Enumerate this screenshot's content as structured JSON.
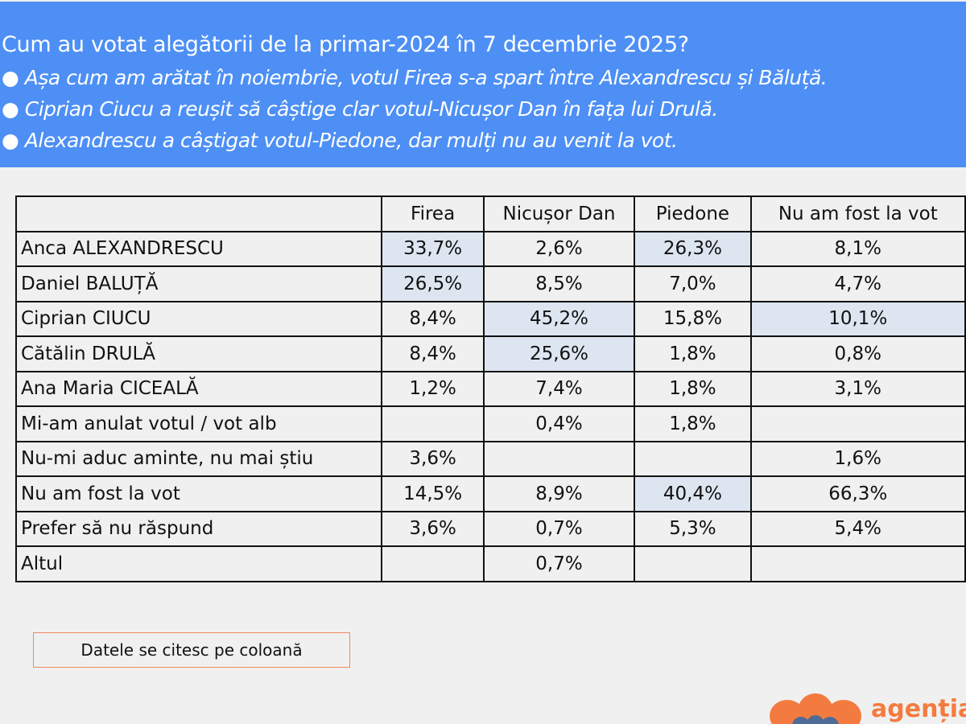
{
  "header": {
    "title": "Cum au votat alegătorii de la primar-2024 în 7 decembrie 2025?",
    "bullets": [
      "● Așa cum am arătat în noiembrie, votul Firea s-a spart între Alexandrescu și Băluță.",
      "● Ciprian Ciucu a reușit să câștige clar votul-Nicușor Dan în fața lui Drulă.",
      "● Alexandrescu a câștigat votul-Piedone, dar mulți nu au venit la vot."
    ],
    "background": "#4d8ff5"
  },
  "table": {
    "columns": [
      "",
      "Firea",
      "Nicușor Dan",
      "Piedone",
      "Nu am fost la vot"
    ],
    "highlight_color": "#dde6f0",
    "rows": [
      {
        "label": "Anca ALEXANDRESCU",
        "values": [
          "33,7%",
          "2,6%",
          "26,3%",
          "8,1%"
        ],
        "highlight": [
          true,
          false,
          true,
          false
        ]
      },
      {
        "label": "Daniel BALUȚĂ",
        "values": [
          "26,5%",
          "8,5%",
          "7,0%",
          "4,7%"
        ],
        "highlight": [
          true,
          false,
          false,
          false
        ]
      },
      {
        "label": "Ciprian CIUCU",
        "values": [
          "8,4%",
          "45,2%",
          "15,8%",
          "10,1%"
        ],
        "highlight": [
          false,
          true,
          false,
          true
        ]
      },
      {
        "label": "Cătălin DRULĂ",
        "values": [
          "8,4%",
          "25,6%",
          "1,8%",
          "0,8%"
        ],
        "highlight": [
          false,
          true,
          false,
          false
        ]
      },
      {
        "label": "Ana Maria CICEALĂ",
        "values": [
          "1,2%",
          "7,4%",
          "1,8%",
          "3,1%"
        ],
        "highlight": [
          false,
          false,
          false,
          false
        ]
      },
      {
        "label": "Mi-am anulat votul / vot alb",
        "values": [
          "",
          "0,4%",
          "1,8%",
          ""
        ],
        "highlight": [
          false,
          false,
          false,
          false
        ]
      },
      {
        "label": "Nu-mi aduc aminte, nu mai știu",
        "values": [
          "3,6%",
          "",
          "",
          "1,6%"
        ],
        "highlight": [
          false,
          false,
          false,
          false
        ]
      },
      {
        "label": "Nu am fost la vot",
        "values": [
          "14,5%",
          "8,9%",
          "40,4%",
          "66,3%"
        ],
        "highlight": [
          false,
          false,
          true,
          false
        ]
      },
      {
        "label": "Prefer să nu răspund",
        "values": [
          "3,6%",
          "0,7%",
          "5,3%",
          "5,4%"
        ],
        "highlight": [
          false,
          false,
          false,
          false
        ]
      },
      {
        "label": "Altul",
        "values": [
          "",
          "0,7%",
          "",
          ""
        ],
        "highlight": [
          false,
          false,
          false,
          false
        ]
      }
    ]
  },
  "note": "Datele se citesc pe coloană",
  "logo": {
    "text": "agenția",
    "color": "#f47b3f"
  }
}
